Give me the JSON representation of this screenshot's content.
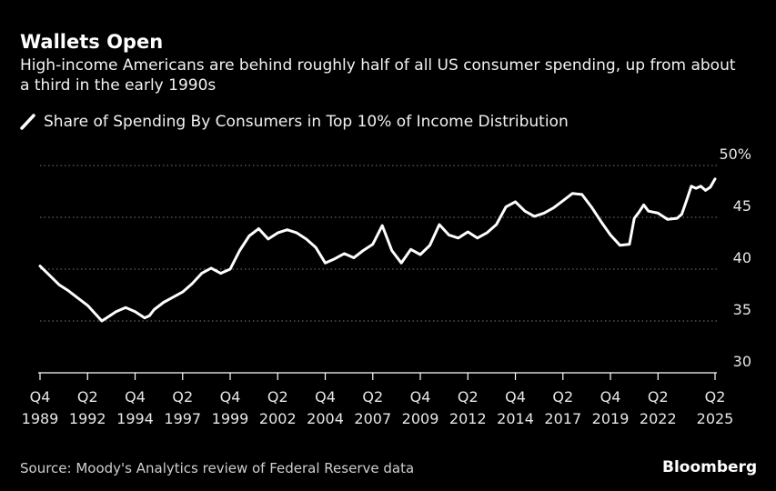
{
  "header": {
    "title": "Wallets Open",
    "subtitle": "High-income Americans are behind roughly half of all US consumer spending, up from about a third in the early 1990s"
  },
  "legend": {
    "label": "Share of Spending By Consumers in Top 10% of Income Distribution"
  },
  "footer": {
    "source": "Source: Moody's Analytics review of Federal Reserve data",
    "brand": "Bloomberg"
  },
  "colors": {
    "background": "#000000",
    "line": "#ffffff",
    "grid": "#7a7a7a"
  },
  "chart_data": {
    "type": "line",
    "title": "Wallets Open",
    "subtitle": "High-income Americans are behind roughly half of all US consumer spending, up from about a third in the early 1990s",
    "xlabel": "",
    "ylabel": "",
    "ylim": [
      30,
      50
    ],
    "xlim": [
      1989.75,
      2025.25
    ],
    "y_ticks": [
      {
        "value": 50,
        "label": "50%"
      },
      {
        "value": 45,
        "label": "45"
      },
      {
        "value": 40,
        "label": "40"
      },
      {
        "value": 35,
        "label": "35"
      },
      {
        "value": 30,
        "label": "30"
      }
    ],
    "x_ticks": [
      {
        "t": 1989.75,
        "q": "Q4",
        "year": "1989"
      },
      {
        "t": 1992.25,
        "q": "Q2",
        "year": "1992"
      },
      {
        "t": 1994.75,
        "q": "Q4",
        "year": "1994"
      },
      {
        "t": 1997.25,
        "q": "Q2",
        "year": "1997"
      },
      {
        "t": 1999.75,
        "q": "Q4",
        "year": "1999"
      },
      {
        "t": 2002.25,
        "q": "Q2",
        "year": "2002"
      },
      {
        "t": 2004.75,
        "q": "Q4",
        "year": "2004"
      },
      {
        "t": 2007.25,
        "q": "Q2",
        "year": "2007"
      },
      {
        "t": 2009.75,
        "q": "Q4",
        "year": "2009"
      },
      {
        "t": 2012.25,
        "q": "Q2",
        "year": "2012"
      },
      {
        "t": 2014.75,
        "q": "Q4",
        "year": "2014"
      },
      {
        "t": 2017.25,
        "q": "Q2",
        "year": "2017"
      },
      {
        "t": 2019.75,
        "q": "Q4",
        "year": "2019"
      },
      {
        "t": 2022.25,
        "q": "Q2",
        "year": "2022"
      },
      {
        "t": 2025.25,
        "q": "Q2",
        "year": "2025"
      }
    ],
    "grid": "horizontal-dotted",
    "legend_position": "top-left",
    "series": [
      {
        "name": "Share of Spending By Consumers in Top 10% of Income Distribution",
        "points": [
          [
            1989.75,
            40.3
          ],
          [
            1990.25,
            39.4
          ],
          [
            1990.75,
            38.5
          ],
          [
            1991.25,
            37.9
          ],
          [
            1991.75,
            37.2
          ],
          [
            1992.25,
            36.5
          ],
          [
            1992.75,
            35.5
          ],
          [
            1993.0,
            35.0
          ],
          [
            1993.25,
            35.3
          ],
          [
            1993.75,
            35.9
          ],
          [
            1994.25,
            36.3
          ],
          [
            1994.75,
            35.9
          ],
          [
            1995.25,
            35.3
          ],
          [
            1995.5,
            35.5
          ],
          [
            1995.75,
            36.1
          ],
          [
            1996.25,
            36.8
          ],
          [
            1996.75,
            37.3
          ],
          [
            1997.25,
            37.8
          ],
          [
            1997.75,
            38.6
          ],
          [
            1998.25,
            39.6
          ],
          [
            1998.75,
            40.1
          ],
          [
            1999.25,
            39.6
          ],
          [
            1999.75,
            40.0
          ],
          [
            2000.25,
            41.8
          ],
          [
            2000.75,
            43.2
          ],
          [
            2001.25,
            43.9
          ],
          [
            2001.75,
            42.9
          ],
          [
            2002.25,
            43.5
          ],
          [
            2002.75,
            43.8
          ],
          [
            2003.25,
            43.5
          ],
          [
            2003.75,
            42.9
          ],
          [
            2004.25,
            42.1
          ],
          [
            2004.75,
            40.6
          ],
          [
            2005.25,
            41.0
          ],
          [
            2005.75,
            41.5
          ],
          [
            2006.25,
            41.1
          ],
          [
            2006.75,
            41.8
          ],
          [
            2007.25,
            42.4
          ],
          [
            2007.75,
            44.2
          ],
          [
            2008.25,
            41.8
          ],
          [
            2008.75,
            40.6
          ],
          [
            2009.25,
            41.9
          ],
          [
            2009.75,
            41.4
          ],
          [
            2010.25,
            42.3
          ],
          [
            2010.75,
            44.3
          ],
          [
            2011.25,
            43.3
          ],
          [
            2011.75,
            43.0
          ],
          [
            2012.25,
            43.6
          ],
          [
            2012.75,
            43.0
          ],
          [
            2013.25,
            43.5
          ],
          [
            2013.75,
            44.3
          ],
          [
            2014.25,
            46.0
          ],
          [
            2014.75,
            46.5
          ],
          [
            2015.25,
            45.6
          ],
          [
            2015.75,
            45.1
          ],
          [
            2016.25,
            45.4
          ],
          [
            2016.75,
            45.9
          ],
          [
            2017.25,
            46.6
          ],
          [
            2017.75,
            47.3
          ],
          [
            2018.25,
            47.2
          ],
          [
            2018.75,
            46.0
          ],
          [
            2019.25,
            44.6
          ],
          [
            2019.75,
            43.3
          ],
          [
            2020.25,
            42.3
          ],
          [
            2020.75,
            42.4
          ],
          [
            2021.0,
            44.9
          ],
          [
            2021.25,
            45.5
          ],
          [
            2021.5,
            46.2
          ],
          [
            2021.75,
            45.6
          ],
          [
            2022.25,
            45.4
          ],
          [
            2022.75,
            44.8
          ],
          [
            2023.25,
            44.9
          ],
          [
            2023.5,
            45.3
          ],
          [
            2023.75,
            46.6
          ],
          [
            2024.0,
            48.0
          ],
          [
            2024.25,
            47.8
          ],
          [
            2024.5,
            48.0
          ],
          [
            2024.75,
            47.6
          ],
          [
            2025.0,
            47.9
          ],
          [
            2025.25,
            48.7
          ]
        ]
      }
    ]
  }
}
